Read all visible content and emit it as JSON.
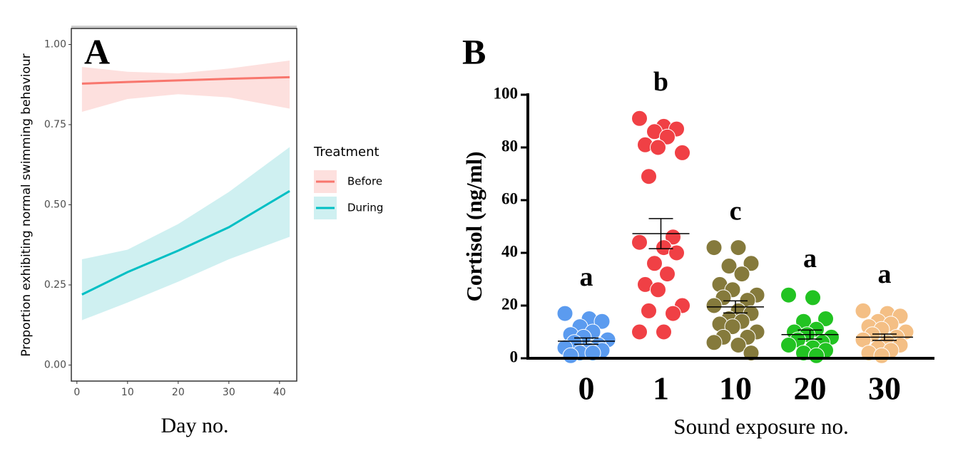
{
  "chart_data": [
    {
      "type": "line",
      "panel": "A",
      "ylabel": "Proportion exhibiting normal swimming behaviour",
      "xlabel": "Day no.",
      "legend_title": "Treatment",
      "x": [
        1,
        10,
        20,
        30,
        42
      ],
      "xlim": [
        -1.1,
        43.4
      ],
      "ylim": [
        -0.05,
        1.05
      ],
      "xticks": [
        0,
        10,
        20,
        30,
        40
      ],
      "yticks": [
        {
          "value": 0,
          "label": "0.00"
        },
        {
          "value": 0.25,
          "label": "0.25"
        },
        {
          "value": 0.5,
          "label": "0.50"
        },
        {
          "value": 0.75,
          "label": "0.75"
        },
        {
          "value": 1,
          "label": "1.00"
        }
      ],
      "series": [
        {
          "name": "Before",
          "color": "#f8766d",
          "band_color": "#fde0de",
          "values": [
            0.878,
            0.883,
            0.888,
            0.893,
            0.898
          ],
          "lower": [
            0.79,
            0.83,
            0.845,
            0.835,
            0.8
          ],
          "upper": [
            0.93,
            0.915,
            0.91,
            0.925,
            0.95
          ]
        },
        {
          "name": "During",
          "color": "#00bfc4",
          "band_color": "#cff0f1",
          "values": [
            0.22,
            0.29,
            0.357,
            0.43,
            0.543
          ],
          "lower": [
            0.14,
            0.195,
            0.26,
            0.33,
            0.4
          ],
          "upper": [
            0.33,
            0.36,
            0.44,
            0.54,
            0.68
          ]
        }
      ]
    },
    {
      "type": "dot",
      "panel": "B",
      "ylabel": "Cortisol (ng/ml)",
      "xlabel": "Sound exposure no.",
      "categories": [
        "0",
        "1",
        "10",
        "20",
        "30"
      ],
      "ylim": [
        0,
        100
      ],
      "yticks": [
        0,
        20,
        40,
        60,
        80,
        100
      ],
      "colors": [
        "#5b9bef",
        "#f04045",
        "#857a3c",
        "#22c322",
        "#f4bf85"
      ],
      "letters": [
        "a",
        "b",
        "c",
        "a",
        "a"
      ],
      "means": [
        6.5,
        47.3,
        19.5,
        9,
        8
      ],
      "sems": [
        1.2,
        5.7,
        2.3,
        1.7,
        1.2
      ],
      "points": [
        [
          17,
          15,
          14,
          12,
          10,
          9,
          8,
          7,
          6,
          5,
          4,
          3,
          3,
          2,
          2,
          1
        ],
        [
          91,
          88,
          87,
          86,
          84,
          81,
          80,
          78,
          69,
          46,
          44,
          42,
          40,
          36,
          32,
          28,
          26,
          20,
          18,
          17,
          10,
          10
        ],
        [
          42,
          42,
          36,
          35,
          32,
          28,
          26,
          24,
          23,
          22,
          20,
          18,
          17,
          15,
          14,
          13,
          12,
          10,
          8,
          8,
          6,
          5,
          2
        ],
        [
          24,
          23,
          15,
          14,
          11,
          10,
          9,
          8,
          7,
          6,
          5,
          4,
          3,
          2,
          1
        ],
        [
          18,
          17,
          16,
          14,
          13,
          12,
          11,
          10,
          9,
          8,
          7,
          6,
          5,
          4,
          3,
          2,
          1
        ]
      ]
    }
  ]
}
